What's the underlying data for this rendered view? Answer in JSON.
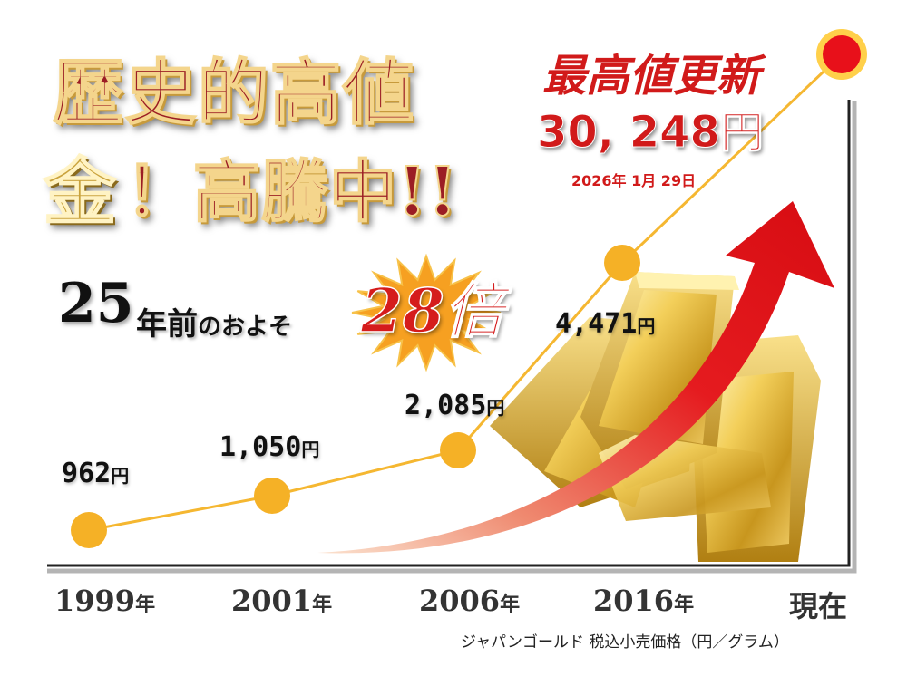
{
  "headline": {
    "line1": "歴史的高値",
    "line2_kin": "金",
    "line2_rest": "！高騰中!!"
  },
  "comparison": {
    "years": "25",
    "years_suffix": "年前",
    "phrase": "のおよそ",
    "multiplier": "28倍"
  },
  "record": {
    "label": "最高値更新",
    "price": "30, 248円",
    "date": "2026年 1月 29日"
  },
  "source_note": "ジャパンゴールド 税込小売価格（円／グラム）",
  "chart_data": {
    "type": "line",
    "categories": [
      "1999年",
      "2001年",
      "2006年",
      "2016年",
      "現在"
    ],
    "values": [
      962,
      1050,
      2085,
      4471,
      30248
    ],
    "value_labels": [
      "962円",
      "1,050円",
      "2,085円",
      "4,471円",
      "30, 248円"
    ],
    "units": "円／グラム",
    "title": "",
    "xlabel": "",
    "ylabel": "",
    "grid": false,
    "colors": {
      "line": "#f5b731",
      "marker": "#f5b126",
      "marker_current": "#e8101a",
      "arrow": "#e3141b",
      "axis": "#222222"
    }
  }
}
